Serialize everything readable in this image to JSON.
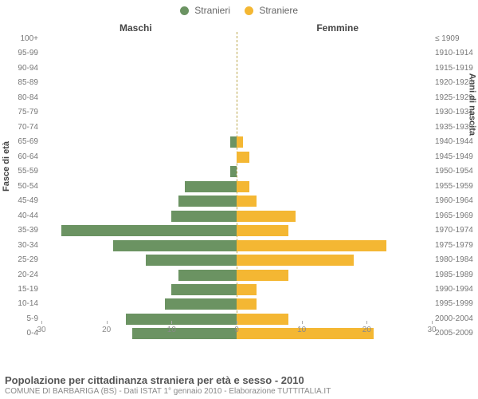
{
  "chart": {
    "type": "population-pyramid",
    "legend": [
      {
        "label": "Stranieri",
        "color": "#6b9362"
      },
      {
        "label": "Straniere",
        "color": "#f4b733"
      }
    ],
    "column_titles": {
      "left": "Maschi",
      "right": "Femmine"
    },
    "axis_titles": {
      "left": "Fasce di età",
      "right": "Anni di nascita"
    },
    "x_axis": {
      "max": 30,
      "ticks": [
        30,
        20,
        10,
        0,
        10,
        20,
        30
      ]
    },
    "colors": {
      "male": "#6b9362",
      "female": "#f4b733",
      "bg": "#ffffff",
      "text": "#666666",
      "center_line": "#bba64d"
    },
    "rows": [
      {
        "age": "100+",
        "birth": "≤ 1909",
        "m": 0,
        "f": 0
      },
      {
        "age": "95-99",
        "birth": "1910-1914",
        "m": 0,
        "f": 0
      },
      {
        "age": "90-94",
        "birth": "1915-1919",
        "m": 0,
        "f": 0
      },
      {
        "age": "85-89",
        "birth": "1920-1924",
        "m": 0,
        "f": 0
      },
      {
        "age": "80-84",
        "birth": "1925-1929",
        "m": 0,
        "f": 0
      },
      {
        "age": "75-79",
        "birth": "1930-1934",
        "m": 0,
        "f": 0
      },
      {
        "age": "70-74",
        "birth": "1935-1939",
        "m": 0,
        "f": 0
      },
      {
        "age": "65-69",
        "birth": "1940-1944",
        "m": 1,
        "f": 1
      },
      {
        "age": "60-64",
        "birth": "1945-1949",
        "m": 0,
        "f": 2
      },
      {
        "age": "55-59",
        "birth": "1950-1954",
        "m": 1,
        "f": 0
      },
      {
        "age": "50-54",
        "birth": "1955-1959",
        "m": 8,
        "f": 2
      },
      {
        "age": "45-49",
        "birth": "1960-1964",
        "m": 9,
        "f": 3
      },
      {
        "age": "40-44",
        "birth": "1965-1969",
        "m": 10,
        "f": 9
      },
      {
        "age": "35-39",
        "birth": "1970-1974",
        "m": 27,
        "f": 8
      },
      {
        "age": "30-34",
        "birth": "1975-1979",
        "m": 19,
        "f": 23
      },
      {
        "age": "25-29",
        "birth": "1980-1984",
        "m": 14,
        "f": 18
      },
      {
        "age": "20-24",
        "birth": "1985-1989",
        "m": 9,
        "f": 8
      },
      {
        "age": "15-19",
        "birth": "1990-1994",
        "m": 10,
        "f": 3
      },
      {
        "age": "10-14",
        "birth": "1995-1999",
        "m": 11,
        "f": 3
      },
      {
        "age": "5-9",
        "birth": "2000-2004",
        "m": 17,
        "f": 8
      },
      {
        "age": "0-4",
        "birth": "2005-2009",
        "m": 16,
        "f": 21
      }
    ]
  },
  "footer": {
    "title": "Popolazione per cittadinanza straniera per età e sesso - 2010",
    "subtitle": "COMUNE DI BARBARIGA (BS) - Dati ISTAT 1° gennaio 2010 - Elaborazione TUTTITALIA.IT"
  }
}
